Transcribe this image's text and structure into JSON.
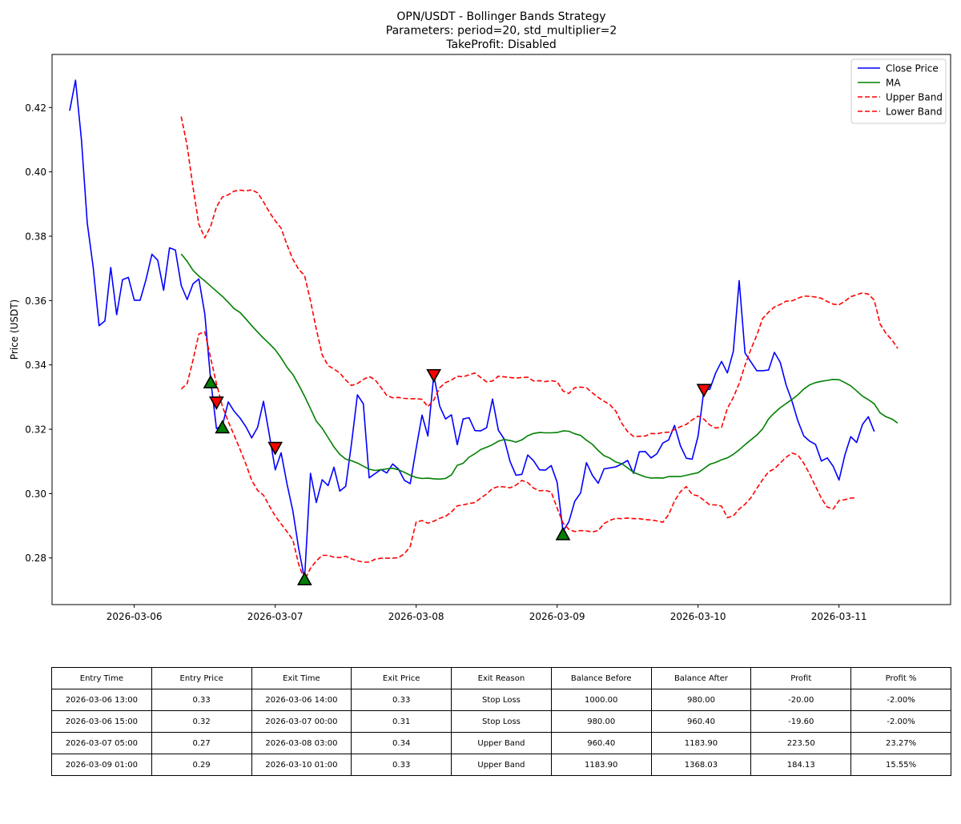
{
  "chart_data": {
    "type": "line",
    "title_lines": [
      "OPN/USDT - Bollinger Bands Strategy",
      "Parameters: period=20, std_multiplier=2",
      "TakeProfit: Disabled"
    ],
    "xlabel": "",
    "ylabel": "Price (USDT)",
    "x_ticks": [
      "2026-03-06",
      "2026-03-07",
      "2026-03-08",
      "2026-03-09",
      "2026-03-10",
      "2026-03-11"
    ],
    "y_ticks": [
      "0.28",
      "0.30",
      "0.32",
      "0.34",
      "0.36",
      "0.38",
      "0.40",
      "0.42"
    ],
    "ylim": [
      0.2655,
      0.4365
    ],
    "x_range": [
      "2026-03-05 10:00",
      "2026-03-11 19:00"
    ],
    "grid": false,
    "legend_position": "top-right",
    "colors": {
      "close": "#0000ff",
      "ma": "#008000",
      "band": "#ff0000",
      "buy": "#008000",
      "sell": "#ff0000"
    },
    "series": [
      {
        "key": "close",
        "name": "Close Price",
        "style": "solid",
        "start": "2026-03-05 13:00",
        "values": [
          0.419,
          0.4285,
          0.41,
          0.384,
          0.3705,
          0.3522,
          0.3537,
          0.3703,
          0.3556,
          0.3665,
          0.3672,
          0.3601,
          0.3601,
          0.3665,
          0.3744,
          0.3725,
          0.3632,
          0.3764,
          0.3757,
          0.3647,
          0.3603,
          0.3652,
          0.3667,
          0.3559,
          0.3355,
          0.3202,
          0.3211,
          0.3285,
          0.3256,
          0.3235,
          0.3208,
          0.3173,
          0.3206,
          0.3287,
          0.3183,
          0.3074,
          0.3127,
          0.3031,
          0.2946,
          0.2829,
          0.2735,
          0.3063,
          0.2972,
          0.3043,
          0.3025,
          0.3082,
          0.3008,
          0.3023,
          0.3157,
          0.3307,
          0.3279,
          0.3049,
          0.3062,
          0.3075,
          0.3064,
          0.3092,
          0.3076,
          0.3041,
          0.3031,
          0.3141,
          0.3244,
          0.3179,
          0.3369,
          0.3272,
          0.3232,
          0.3245,
          0.3152,
          0.3232,
          0.3236,
          0.3196,
          0.3195,
          0.3205,
          0.3294,
          0.3197,
          0.3169,
          0.3099,
          0.3057,
          0.306,
          0.312,
          0.3102,
          0.3074,
          0.3073,
          0.3087,
          0.3035,
          0.2883,
          0.2912,
          0.2976,
          0.3002,
          0.3096,
          0.3057,
          0.3032,
          0.3077,
          0.308,
          0.3083,
          0.3092,
          0.3103,
          0.3063,
          0.313,
          0.3131,
          0.3111,
          0.3124,
          0.3157,
          0.3167,
          0.3212,
          0.3148,
          0.311,
          0.3107,
          0.3179,
          0.3323,
          0.3324,
          0.3375,
          0.3411,
          0.3375,
          0.3442,
          0.3662,
          0.3437,
          0.3409,
          0.3382,
          0.3382,
          0.3384,
          0.3439,
          0.3408,
          0.3337,
          0.3287,
          0.3226,
          0.3179,
          0.3163,
          0.3153,
          0.3101,
          0.3111,
          0.3085,
          0.3042,
          0.312,
          0.3177,
          0.3159,
          0.3215,
          0.3239,
          0.3193
        ]
      },
      {
        "key": "ma",
        "name": "MA",
        "style": "solid",
        "start": "2026-03-06 08:00",
        "values": [
          0.3745,
          0.3722,
          0.3694,
          0.3676,
          0.3661,
          0.3645,
          0.3629,
          0.3613,
          0.3595,
          0.3575,
          0.3563,
          0.3543,
          0.3522,
          0.3502,
          0.3483,
          0.3466,
          0.3447,
          0.3422,
          0.3393,
          0.337,
          0.3338,
          0.3303,
          0.3264,
          0.3225,
          0.3203,
          0.3174,
          0.3145,
          0.3122,
          0.3107,
          0.3102,
          0.3095,
          0.3085,
          0.3076,
          0.3072,
          0.3074,
          0.3077,
          0.3079,
          0.3074,
          0.3066,
          0.3057,
          0.305,
          0.3047,
          0.3048,
          0.3046,
          0.3045,
          0.3047,
          0.3058,
          0.3088,
          0.3094,
          0.3113,
          0.3124,
          0.3137,
          0.3144,
          0.3152,
          0.3163,
          0.3168,
          0.3165,
          0.316,
          0.3167,
          0.318,
          0.3187,
          0.319,
          0.3189,
          0.3189,
          0.319,
          0.3195,
          0.3194,
          0.3186,
          0.3181,
          0.3166,
          0.3153,
          0.3134,
          0.3118,
          0.311,
          0.3098,
          0.3093,
          0.308,
          0.3066,
          0.3059,
          0.3052,
          0.3048,
          0.3049,
          0.3048,
          0.3053,
          0.3053,
          0.3053,
          0.3057,
          0.3061,
          0.3065,
          0.3078,
          0.3091,
          0.3097,
          0.3105,
          0.3111,
          0.3122,
          0.3136,
          0.3152,
          0.3167,
          0.3182,
          0.3201,
          0.3232,
          0.3251,
          0.3267,
          0.328,
          0.3293,
          0.3307,
          0.3325,
          0.3338,
          0.3345,
          0.3349,
          0.3352,
          0.3355,
          0.3354,
          0.3345,
          0.3335,
          0.3319,
          0.3303,
          0.3292,
          0.3279,
          0.3251,
          0.3239,
          0.3232,
          0.3219
        ]
      },
      {
        "key": "upper",
        "name": "Upper Band",
        "style": "dashed",
        "start": "2026-03-06 08:00",
        "values": [
          0.4172,
          0.4081,
          0.3952,
          0.3837,
          0.3795,
          0.383,
          0.3891,
          0.3922,
          0.3929,
          0.394,
          0.3943,
          0.3941,
          0.3944,
          0.3935,
          0.3907,
          0.3875,
          0.3848,
          0.3825,
          0.3774,
          0.3728,
          0.3697,
          0.3678,
          0.3599,
          0.3511,
          0.3431,
          0.3398,
          0.3387,
          0.3375,
          0.3353,
          0.3336,
          0.3342,
          0.3355,
          0.3364,
          0.3354,
          0.333,
          0.3305,
          0.3298,
          0.3299,
          0.3296,
          0.3295,
          0.3295,
          0.3293,
          0.327,
          0.3291,
          0.3329,
          0.3345,
          0.3353,
          0.3365,
          0.3363,
          0.3369,
          0.3375,
          0.3361,
          0.3347,
          0.335,
          0.3365,
          0.3363,
          0.3361,
          0.3359,
          0.3361,
          0.3362,
          0.335,
          0.3351,
          0.3348,
          0.3351,
          0.3348,
          0.3319,
          0.3311,
          0.3329,
          0.3331,
          0.3329,
          0.3313,
          0.3299,
          0.3287,
          0.3276,
          0.3256,
          0.3219,
          0.3193,
          0.3178,
          0.3178,
          0.3179,
          0.3187,
          0.3186,
          0.319,
          0.3191,
          0.3199,
          0.3208,
          0.3215,
          0.3229,
          0.3241,
          0.3231,
          0.3213,
          0.3204,
          0.3206,
          0.3265,
          0.3299,
          0.3342,
          0.3399,
          0.3449,
          0.3492,
          0.3544,
          0.3564,
          0.358,
          0.3588,
          0.3598,
          0.3599,
          0.3607,
          0.3614,
          0.3613,
          0.3611,
          0.3607,
          0.3597,
          0.3589,
          0.3587,
          0.3598,
          0.3612,
          0.3618,
          0.3624,
          0.362,
          0.3601,
          0.3527,
          0.3498,
          0.3478,
          0.3451
        ]
      },
      {
        "key": "lower",
        "name": "Lower Band",
        "style": "dashed",
        "start": "2026-03-06 08:00",
        "values": [
          0.3325,
          0.3342,
          0.3415,
          0.3496,
          0.3503,
          0.3422,
          0.3342,
          0.3271,
          0.3224,
          0.3182,
          0.3138,
          0.3092,
          0.3041,
          0.301,
          0.2995,
          0.2962,
          0.293,
          0.2906,
          0.2882,
          0.2856,
          0.278,
          0.2731,
          0.2768,
          0.2791,
          0.2808,
          0.2808,
          0.2802,
          0.2801,
          0.2805,
          0.2797,
          0.2791,
          0.2787,
          0.2787,
          0.2796,
          0.2799,
          0.2799,
          0.2799,
          0.2801,
          0.2813,
          0.2836,
          0.2912,
          0.2916,
          0.2908,
          0.2914,
          0.2923,
          0.2929,
          0.2943,
          0.2962,
          0.2965,
          0.2969,
          0.2972,
          0.2986,
          0.2999,
          0.3016,
          0.3022,
          0.3021,
          0.3018,
          0.3026,
          0.3041,
          0.3034,
          0.3017,
          0.3009,
          0.301,
          0.3005,
          0.2955,
          0.2909,
          0.2889,
          0.2882,
          0.2885,
          0.2884,
          0.2881,
          0.2885,
          0.2907,
          0.2917,
          0.2923,
          0.2922,
          0.2924,
          0.2922,
          0.2922,
          0.2919,
          0.2918,
          0.2915,
          0.2911,
          0.2935,
          0.2977,
          0.3006,
          0.3022,
          0.2997,
          0.2993,
          0.2979,
          0.2965,
          0.2965,
          0.2961,
          0.2925,
          0.2931,
          0.2952,
          0.2967,
          0.2987,
          0.3016,
          0.3043,
          0.3068,
          0.3077,
          0.3095,
          0.3113,
          0.3126,
          0.312,
          0.3094,
          0.3061,
          0.3023,
          0.2985,
          0.2958,
          0.2952,
          0.2978,
          0.2981,
          0.2986,
          0.2987
        ]
      }
    ],
    "markers": [
      {
        "type": "buy",
        "time": "2026-03-06 13:00",
        "value": 0.3345
      },
      {
        "type": "sell",
        "time": "2026-03-06 14:00",
        "value": 0.3284
      },
      {
        "type": "buy",
        "time": "2026-03-06 15:00",
        "value": 0.3205
      },
      {
        "type": "sell",
        "time": "2026-03-07 00:00",
        "value": 0.3143
      },
      {
        "type": "buy",
        "time": "2026-03-07 05:00",
        "value": 0.2733
      },
      {
        "type": "sell",
        "time": "2026-03-08 03:00",
        "value": 0.3369
      },
      {
        "type": "buy",
        "time": "2026-03-09 01:00",
        "value": 0.2873
      },
      {
        "type": "sell",
        "time": "2026-03-10 01:00",
        "value": 0.3323
      }
    ]
  },
  "table": {
    "headers": [
      "Entry Time",
      "Entry Price",
      "Exit Time",
      "Exit Price",
      "Exit Reason",
      "Balance Before",
      "Balance After",
      "Profit",
      "Profit %"
    ],
    "rows": [
      [
        "2026-03-06 13:00",
        "0.33",
        "2026-03-06 14:00",
        "0.33",
        "Stop Loss",
        "1000.00",
        "980.00",
        "-20.00",
        "-2.00%"
      ],
      [
        "2026-03-06 15:00",
        "0.32",
        "2026-03-07 00:00",
        "0.31",
        "Stop Loss",
        "980.00",
        "960.40",
        "-19.60",
        "-2.00%"
      ],
      [
        "2026-03-07 05:00",
        "0.27",
        "2026-03-08 03:00",
        "0.34",
        "Upper Band",
        "960.40",
        "1183.90",
        "223.50",
        "23.27%"
      ],
      [
        "2026-03-09 01:00",
        "0.29",
        "2026-03-10 01:00",
        "0.33",
        "Upper Band",
        "1183.90",
        "1368.03",
        "184.13",
        "15.55%"
      ]
    ]
  }
}
